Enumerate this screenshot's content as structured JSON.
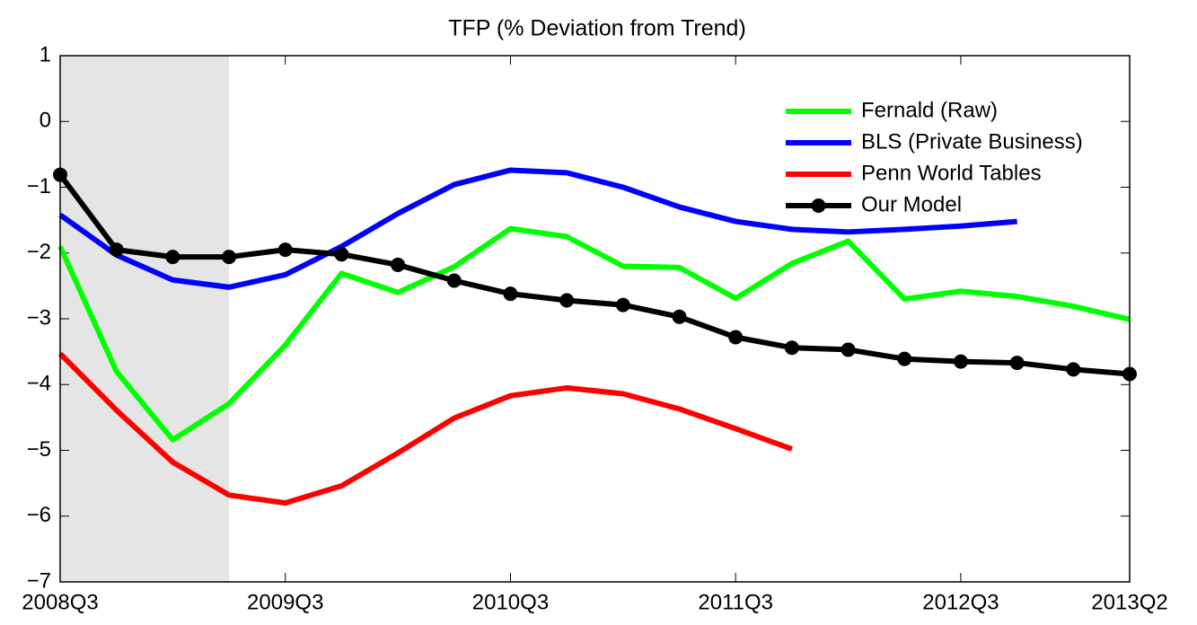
{
  "chart_data": {
    "type": "line",
    "title": "TFP (% Deviation from Trend)",
    "categories": [
      "2008Q3",
      null,
      null,
      null,
      "2009Q3",
      null,
      null,
      null,
      "2010Q3",
      null,
      null,
      null,
      "2011Q3",
      null,
      null,
      null,
      "2012Q3",
      null,
      null,
      "2013Q2"
    ],
    "ylim": [
      -7,
      1
    ],
    "yticks": [
      {
        "value": -7,
        "label": "−7"
      },
      {
        "value": -6,
        "label": "−6"
      },
      {
        "value": -5,
        "label": "−5"
      },
      {
        "value": -4,
        "label": "−4"
      },
      {
        "value": -3,
        "label": "−3"
      },
      {
        "value": -2,
        "label": "−2"
      },
      {
        "value": -1,
        "label": "−1"
      },
      0,
      1
    ],
    "shaded_span": [
      0,
      3
    ],
    "shade_color": "#e5e5e5",
    "legend": "upper right",
    "series": [
      {
        "name": "Fernald (Raw)",
        "color": "#00ff00",
        "values": [
          -1.9,
          -3.8,
          -4.84,
          -4.29,
          -3.4,
          -2.31,
          -2.6,
          -2.21,
          -1.63,
          -1.75,
          -2.2,
          -2.22,
          -2.69,
          -2.16,
          -1.82,
          -2.7,
          -2.58,
          -2.66,
          -2.81,
          -3.01
        ]
      },
      {
        "name": "BLS (Private Business)",
        "color": "#0000ff",
        "values": [
          -1.42,
          -2.03,
          -2.41,
          -2.52,
          -2.33,
          -1.9,
          -1.4,
          -0.96,
          -0.74,
          -0.78,
          -1.0,
          -1.3,
          -1.52,
          -1.64,
          -1.68,
          -1.64,
          -1.59,
          -1.52,
          null,
          null
        ]
      },
      {
        "name": "Penn World Tables",
        "color": "#ff0000",
        "values": [
          -3.53,
          -4.39,
          -5.18,
          -5.68,
          -5.8,
          -5.54,
          -5.04,
          -4.51,
          -4.17,
          -4.05,
          -4.14,
          -4.37,
          -4.67,
          -4.98,
          null,
          null,
          null,
          null,
          null,
          null
        ]
      },
      {
        "name": "Our Model",
        "color": "#000000",
        "marker": "o",
        "values": [
          -0.81,
          -1.95,
          -2.06,
          -2.06,
          -1.95,
          -2.02,
          -2.18,
          -2.42,
          -2.62,
          -2.72,
          -2.79,
          -2.97,
          -3.28,
          -3.44,
          -3.47,
          -3.61,
          -3.65,
          -3.67,
          -3.77,
          -3.84
        ]
      }
    ]
  }
}
